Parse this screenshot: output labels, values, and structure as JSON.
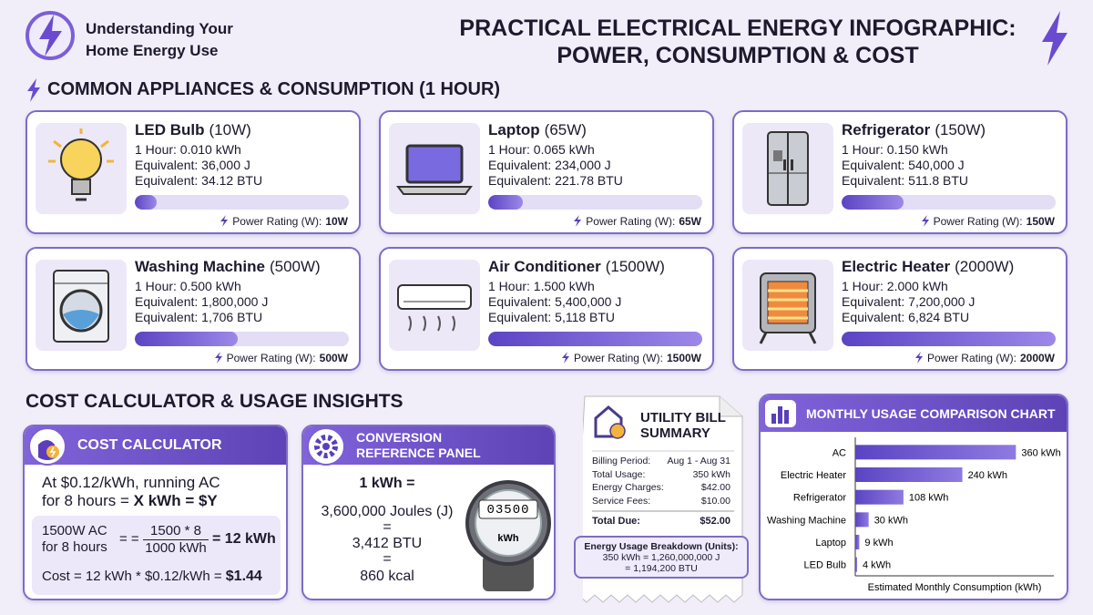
{
  "header": {
    "brand_lines": [
      "Understanding Your",
      "Home Energy Use"
    ],
    "title_lines": [
      "PRACTICAL ELECTRICAL ENERGY INFOGRAPHIC:",
      "POWER, CONSUMPTION & COST"
    ]
  },
  "appliances": {
    "heading": "COMMON APPLIANCES & CONSUMPTION (1 HOUR)",
    "items": [
      {
        "name": "LED Bulb",
        "rating": "(10W)",
        "lines": [
          "1 Hour: 0.010 kWh",
          "Equivalent: 36,000 J",
          "Equivalent: 34.12 BTU"
        ],
        "power_label": "Power Rating (W):",
        "power_value": "10W",
        "bar_percent": 10
      },
      {
        "name": "Laptop",
        "rating": "(65W)",
        "lines": [
          "1 Hour: 0.065 kWh",
          "Equivalent: 234,000 J",
          "Equivalent: 221.78 BTU"
        ],
        "power_label": "Power Rating (W):",
        "power_value": "65W",
        "bar_percent": 16
      },
      {
        "name": "Refrigerator",
        "rating": "(150W)",
        "lines": [
          "1 Hour: 0.150 kWh",
          "Equivalent: 540,000 J",
          "Equivalent: 511.8 BTU"
        ],
        "power_label": "Power Rating (W):",
        "power_value": "150W",
        "bar_percent": 29
      },
      {
        "name": "Washing Machine",
        "rating": "(500W)",
        "lines": [
          "1 Hour: 0.500 kWh",
          "Equivalent: 1,800,000 J",
          "Equivalent: 1,706 BTU"
        ],
        "power_label": "Power Rating (W):",
        "power_value": "500W",
        "bar_percent": 48
      },
      {
        "name": "Air Conditioner",
        "rating": "(1500W)",
        "lines": [
          "1 Hour: 1.500 kWh",
          "Equivalent: 5,400,000 J",
          "Equivalent: 5,118 BTU"
        ],
        "power_label": "Power Rating (W):",
        "power_value": "1500W",
        "bar_percent": 100
      },
      {
        "name": "Electric Heater",
        "rating": "(2000W)",
        "lines": [
          "1 Hour: 2.000 kWh",
          "Equivalent: 7,200,000 J",
          "Equivalent: 6,824 BTU"
        ],
        "power_label": "Power Rating (W):",
        "power_value": "2000W",
        "bar_percent": 100
      }
    ]
  },
  "insights": {
    "heading": "COST CALCULATOR & USAGE INSIGHTS"
  },
  "cost_calculator": {
    "title": "COST CALCULATOR",
    "prompt_line1": "At $0.12/kWh, running AC",
    "prompt_line2_text": "for 8 hours =",
    "prompt_line2_bold": "X kWh = $Y",
    "calc_lines": [
      "1500W AC",
      "for 8 hours"
    ],
    "calc_equals": "= =",
    "calc_numerator": "1500 * 8",
    "calc_denominator": "1000 kWh",
    "calc_result": "= 12 kWh",
    "cost_text": "Cost = 12 kWh * $0.12/kWh =",
    "cost_result": "$1.44"
  },
  "conversion": {
    "title_lines": [
      "CONVERSION",
      "REFERENCE PANEL"
    ],
    "lines": [
      "1 kWh =",
      "3,600,000 Joules (J)",
      "=",
      "3,412 BTU",
      "=",
      "860 kcal"
    ],
    "meter_reading": "03500",
    "meter_unit": "kWh"
  },
  "bill": {
    "title_lines": [
      "UTILITY BILL",
      "SUMMARY"
    ],
    "rows": [
      [
        "Billing Period:",
        "Aug 1 - Aug 31"
      ],
      [
        "Total Usage:",
        "350 kWh"
      ],
      [
        "Energy Charges:",
        "$42.00"
      ],
      [
        "Service Fees:",
        "$10.00"
      ]
    ],
    "total": [
      "Total Due:",
      "$52.00"
    ],
    "breakdown_title": "Energy Usage Breakdown (Units):",
    "breakdown_lines": [
      "350 kWh = 1,260,000,000 J",
      "= 1,194,200 BTU"
    ]
  },
  "chart_data": {
    "type": "hbar",
    "title": "MONTHLY USAGE COMPARISON CHART",
    "categories": [
      "AC",
      "Electric Heater",
      "Refrigerator",
      "Washing Machine",
      "Laptop",
      "LED Bulb"
    ],
    "values": [
      360,
      240,
      108,
      30,
      9,
      4
    ],
    "value_labels": [
      "360 kWh",
      "240 kWh",
      "108 kWh",
      "30 kWh",
      "9 kWh",
      "4 kWh"
    ],
    "xlabel": "Estimated Monthly Consumption (kWh)",
    "xlim": [
      0,
      445
    ],
    "color": "#5b44c4"
  }
}
